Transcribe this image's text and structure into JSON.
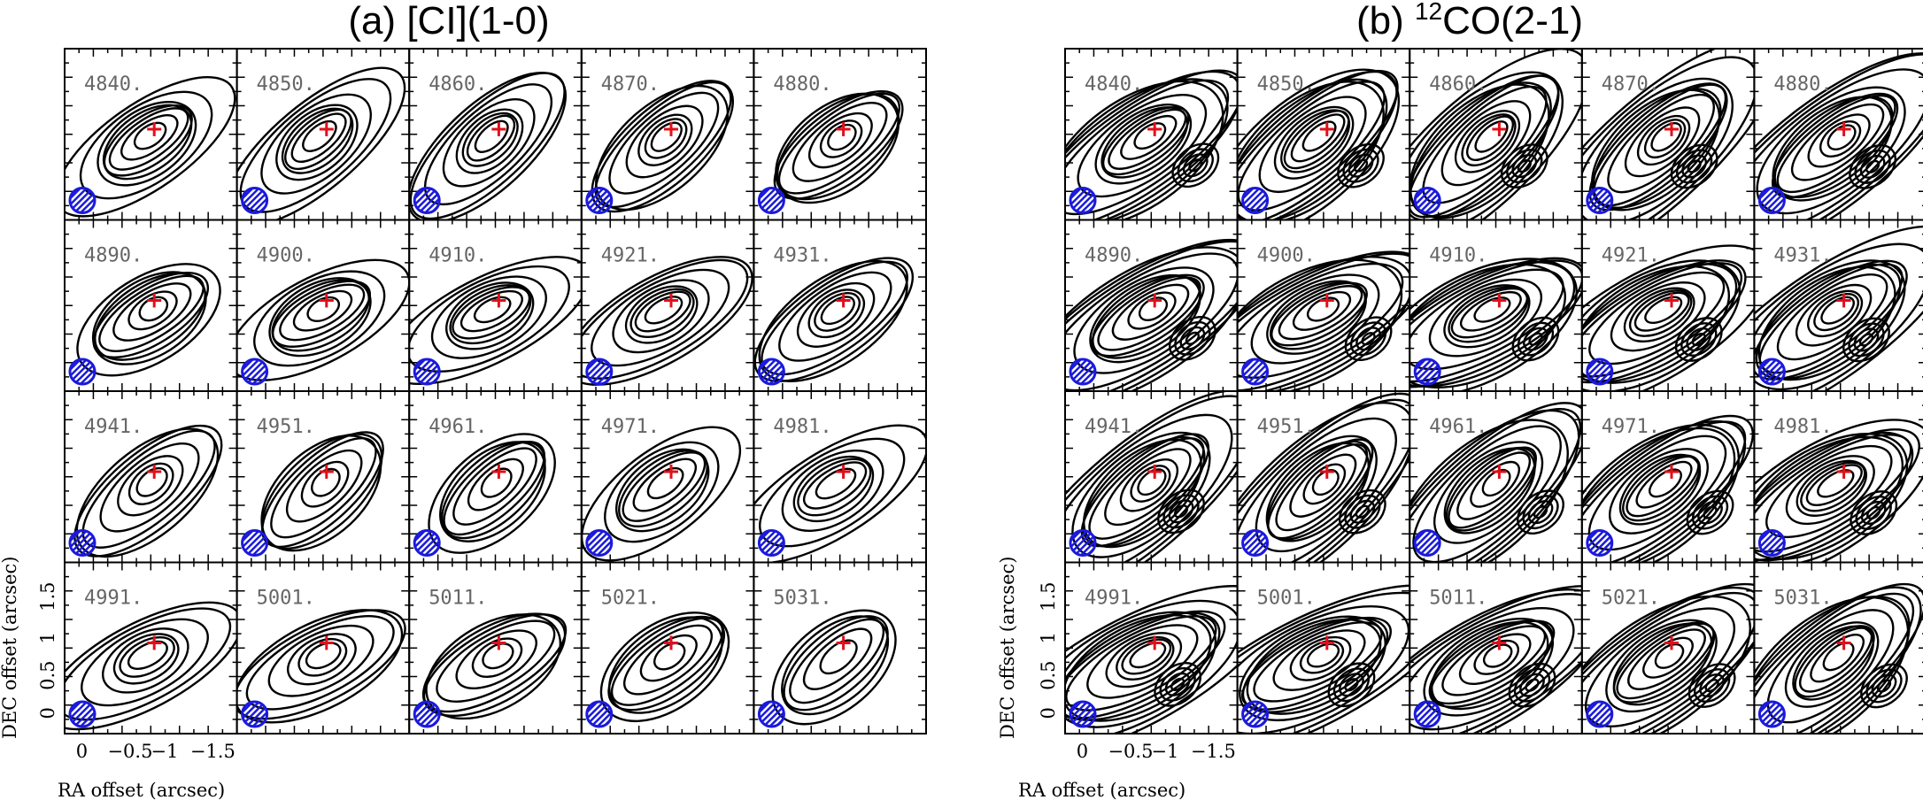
{
  "chart_data": [
    {
      "type": "contour-channel-map",
      "title": "(a) [CI](1-0)",
      "channels": [
        "4840.",
        "4850.",
        "4860.",
        "4870.",
        "4880.",
        "4890.",
        "4900.",
        "4910.",
        "4921.",
        "4931.",
        "4941.",
        "4951.",
        "4961.",
        "4971.",
        "4981.",
        "4991.",
        "5001.",
        "5011.",
        "5021.",
        "5031."
      ],
      "xlabel": "RA offset (arcsec)",
      "ylabel": "DEC offset (arcsec)",
      "xticks": [
        "0",
        "−0.5",
        "−1",
        "−1.5"
      ],
      "yticks": [
        "0",
        "0.5",
        "1",
        "1.5"
      ],
      "peak_marker": "red cross",
      "beam": "blue hatched ellipse"
    },
    {
      "type": "contour-channel-map",
      "title_prefix": "(b) ",
      "title_sup": "12",
      "title_suffix": "CO(2-1)",
      "channels": [
        "4840.",
        "4850.",
        "4860.",
        "4870.",
        "4880.",
        "4890.",
        "4900.",
        "4910.",
        "4921.",
        "4931.",
        "4941.",
        "4951.",
        "4961.",
        "4971.",
        "4981.",
        "4991.",
        "5001.",
        "5011.",
        "5021.",
        "5031."
      ],
      "xlabel": "RA offset (arcsec)",
      "ylabel": "DEC offset (arcsec)",
      "xticks": [
        "0",
        "−0.5",
        "−1",
        "−1.5"
      ],
      "yticks": [
        "0",
        "0.5",
        "1",
        "1.5"
      ],
      "peak_marker": "red cross",
      "beam": "blue hatched ellipse"
    }
  ]
}
